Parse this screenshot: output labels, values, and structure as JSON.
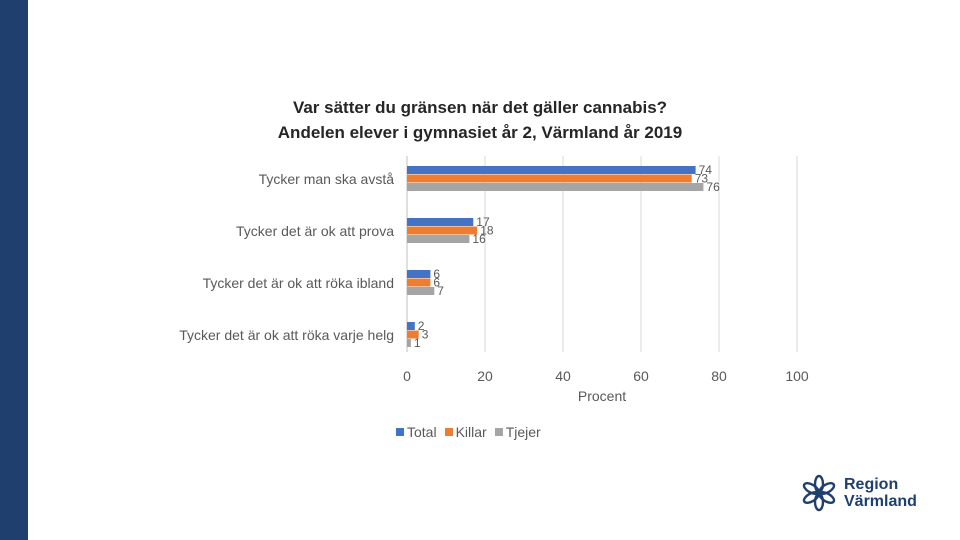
{
  "chart_data": {
    "type": "bar",
    "orientation": "horizontal",
    "title": "Var sätter du gränsen när det gäller cannabis?",
    "subtitle": "Andelen elever i gymnasiet år 2, Värmland år 2019",
    "categories": [
      "Tycker man ska avstå",
      "Tycker det är ok att prova",
      "Tycker det är ok att röka ibland",
      "Tycker det är ok att röka varje helg"
    ],
    "series": [
      {
        "name": "Total",
        "color": "#4472c4",
        "values": [
          74,
          17,
          6,
          2
        ]
      },
      {
        "name": "Killar",
        "color": "#ed7d31",
        "values": [
          73,
          18,
          6,
          3
        ]
      },
      {
        "name": "Tjejer",
        "color": "#a5a5a5",
        "values": [
          76,
          16,
          7,
          1
        ]
      }
    ],
    "xlabel": "Procent",
    "xlim": [
      0,
      100
    ],
    "xticks": [
      "0",
      "20",
      "40",
      "60",
      "80",
      "100"
    ],
    "grid": true,
    "legend_position": "bottom"
  },
  "logo": {
    "line1": "Region",
    "line2": "Värmland"
  },
  "colors": {
    "side_band": "#1f3f6e"
  }
}
